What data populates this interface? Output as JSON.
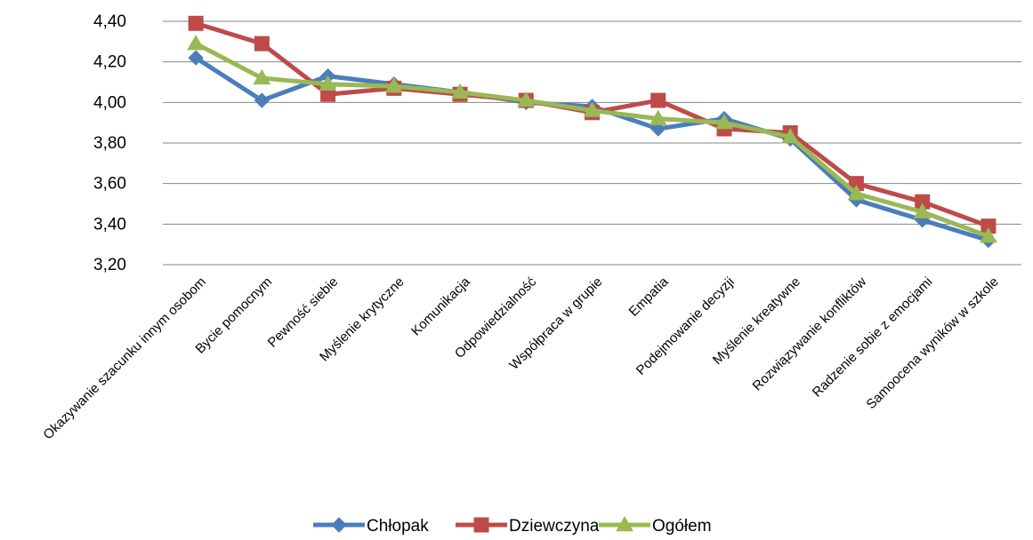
{
  "chart_data": {
    "type": "line",
    "title": "",
    "xlabel": "",
    "ylabel": "",
    "ylim": [
      3.2,
      4.4
    ],
    "yticks": [
      "3,20",
      "3,40",
      "3,60",
      "3,80",
      "4,00",
      "4,20",
      "4,40"
    ],
    "ytick_values": [
      3.2,
      3.4,
      3.6,
      3.8,
      4.0,
      4.2,
      4.4
    ],
    "grid": true,
    "legend_position": "bottom",
    "categories": [
      "Okazywanie szacunku innym osobom",
      "Bycie pomocnym",
      "Pewność siebie",
      "Myślenie krytyczne",
      "Komunikacja",
      "Odpowiedzialność",
      "Współpraca w grupie",
      "Empatia",
      "Podejmowanie decyzji",
      "Myślenie kreatywne",
      "Rozwiązywanie konfliktów",
      "Radzenie sobie z emocjami",
      "Samoocena wyników w szkole"
    ],
    "series": [
      {
        "name": "Chłopak",
        "color": "#4a7ebb",
        "marker": "diamond",
        "values": [
          4.22,
          4.01,
          4.13,
          4.09,
          4.05,
          4.0,
          3.98,
          3.87,
          3.92,
          3.82,
          3.52,
          3.42,
          3.32
        ]
      },
      {
        "name": "Dziewczyna",
        "color": "#be4b48",
        "marker": "square",
        "values": [
          4.39,
          4.29,
          4.04,
          4.07,
          4.04,
          4.01,
          3.95,
          4.01,
          3.87,
          3.85,
          3.6,
          3.51,
          3.39
        ]
      },
      {
        "name": "Ogółem",
        "color": "#98b954",
        "marker": "triangle",
        "values": [
          4.29,
          4.12,
          4.09,
          4.08,
          4.05,
          4.01,
          3.96,
          3.92,
          3.9,
          3.83,
          3.55,
          3.46,
          3.34
        ]
      }
    ]
  }
}
